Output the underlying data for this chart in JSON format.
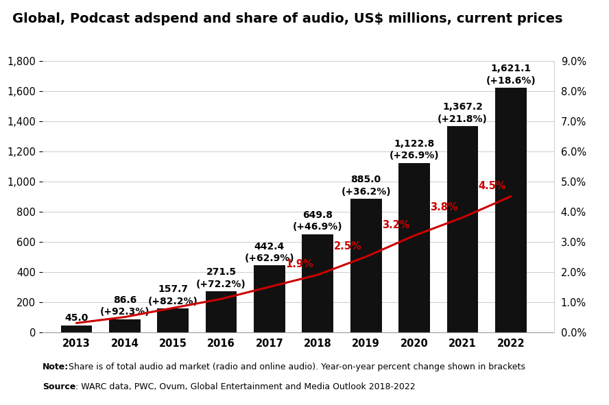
{
  "title": "Global, Podcast adspend and share of audio, US$ millions, current prices",
  "years": [
    2013,
    2014,
    2015,
    2016,
    2017,
    2018,
    2019,
    2020,
    2021,
    2022
  ],
  "bar_values": [
    45.0,
    86.6,
    157.7,
    271.5,
    442.4,
    649.8,
    885.0,
    1122.8,
    1367.2,
    1621.1
  ],
  "bar_labels": [
    "45.0",
    "86.6",
    "157.7",
    "271.5",
    "442.4",
    "649.8",
    "885.0",
    "1,122.8",
    "1,367.2",
    "1,621.1"
  ],
  "bar_sublabels": [
    "",
    "(+92.3%)",
    "(+82.2%)",
    "(+72.2%)",
    "(+62.9%)",
    "(+46.9%)",
    "(+36.2%)",
    "(+26.9%)",
    "(+21.8%)",
    "(+18.6%)"
  ],
  "line_values": [
    0.3,
    0.5,
    0.8,
    1.1,
    1.5,
    1.9,
    2.5,
    3.2,
    3.8,
    4.5
  ],
  "line_labels": [
    "",
    "",
    "",
    "",
    "",
    "1.9%",
    "2.5%",
    "3.2%",
    "3.8%",
    "4.5%"
  ],
  "line_label_offsets": [
    0,
    0,
    0,
    0,
    0,
    -0.45,
    -0.45,
    -0.45,
    -0.45,
    -0.45
  ],
  "bar_color": "#111111",
  "line_color": "#cc0000",
  "background_color": "#ffffff",
  "ylim_left": [
    0,
    1800
  ],
  "ylim_right": [
    0,
    9.0
  ],
  "yticks_left": [
    0,
    200,
    400,
    600,
    800,
    1000,
    1200,
    1400,
    1600,
    1800
  ],
  "yticks_right": [
    0.0,
    1.0,
    2.0,
    3.0,
    4.0,
    5.0,
    6.0,
    7.0,
    8.0,
    9.0
  ],
  "ytick_labels_right": [
    "0.0%",
    "1.0%",
    "2.0%",
    "3.0%",
    "4.0%",
    "5.0%",
    "6.0%",
    "7.0%",
    "8.0%",
    "9.0%"
  ],
  "note_bold": "Note:",
  "note_rest": " Share is of total audio ad market (radio and online audio). Year-on-year percent change shown in brackets",
  "source_bold": "Source",
  "source_rest": ": WARC data, PWC, Ovum, Global Entertainment and Media Outlook 2018-2022",
  "title_fontsize": 14,
  "axis_fontsize": 10.5,
  "label_fontsize": 10,
  "note_fontsize": 9
}
